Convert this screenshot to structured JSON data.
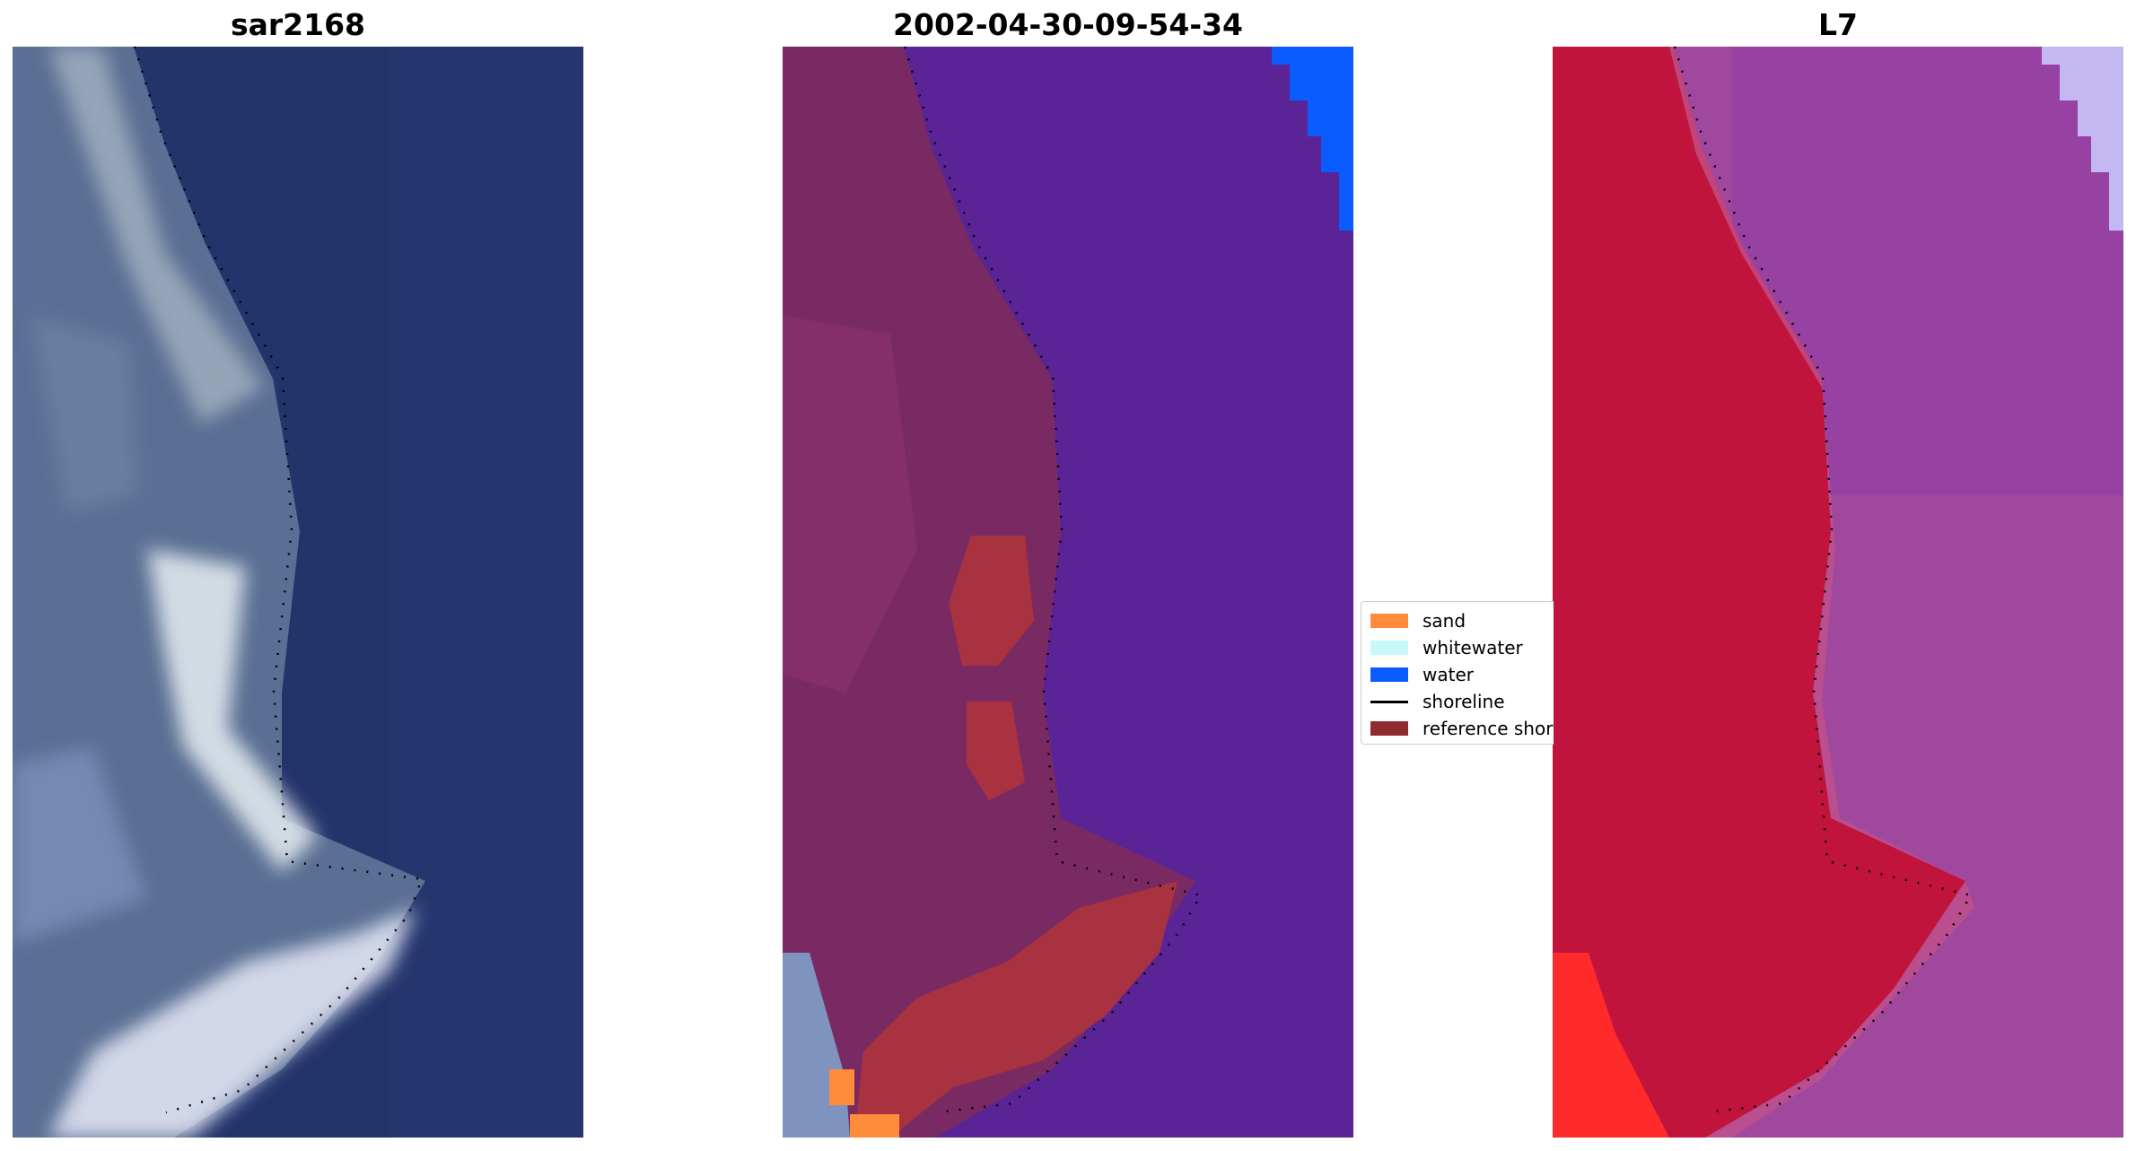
{
  "panels": [
    {
      "title": "sar2168"
    },
    {
      "title": "2002-04-30-09-54-34"
    },
    {
      "title": "L7"
    }
  ],
  "legend": {
    "items": [
      {
        "label": "sand",
        "color": "#ff8c3a",
        "kind": "patch"
      },
      {
        "label": "whitewater",
        "color": "#c8f8f8",
        "kind": "patch"
      },
      {
        "label": "water",
        "color": "#0a5cff",
        "kind": "patch"
      },
      {
        "label": "shoreline",
        "color": "#000000",
        "kind": "line"
      },
      {
        "label": "reference shoreline",
        "color": "#8f2a2f",
        "kind": "patch"
      }
    ]
  },
  "colors": {
    "rgb_water": "#23346b",
    "rgb_land": "#5d7399",
    "class_background": "#5a2497",
    "class_land": "#7a2a63",
    "nir_land": "#c0143c",
    "nir_water": "#a0489e"
  }
}
